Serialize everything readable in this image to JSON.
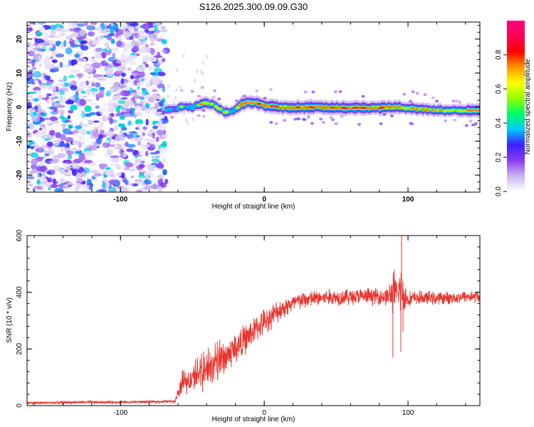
{
  "chart_data": [
    {
      "type": "heatmap",
      "title": "S126.2025.300.09.09.G30",
      "xlabel": "Height of straight line (km)",
      "ylabel": "Frequency (Hz)",
      "xlim": [
        -165,
        150
      ],
      "ylim": [
        -25,
        25
      ],
      "x_ticks": [
        -100,
        0,
        100
      ],
      "x_tick_labels": [
        "-100",
        "0",
        "100"
      ],
      "y_ticks": [
        -20,
        -10,
        0,
        10,
        20
      ],
      "y_tick_labels": [
        "-20",
        "-10",
        "0",
        "10",
        "20"
      ],
      "colorbar": {
        "label": "Normalized spectral amplitude",
        "range": [
          0,
          1
        ],
        "ticks": [
          0,
          0.2,
          0.4,
          0.6,
          0.8
        ],
        "tick_labels": [
          "0.0",
          "0.2",
          "0.4",
          "0.6",
          "0.8"
        ],
        "colors": [
          "#ffffff",
          "#c8b4f0",
          "#8a3cf0",
          "#3c1eff",
          "#00c8ff",
          "#00ff64",
          "#96ff00",
          "#ffff00",
          "#ff9600",
          "#ff0000",
          "#ff0050",
          "#ff0080"
        ]
      },
      "noise_region_x": [
        -165,
        -68
      ],
      "signal_start_x": -68,
      "signal_track": [
        {
          "x": -68,
          "y": -1.0,
          "a": 0.35
        },
        {
          "x": -62,
          "y": -0.5,
          "a": 0.45
        },
        {
          "x": -55,
          "y": 0.3,
          "a": 0.5
        },
        {
          "x": -50,
          "y": -0.2,
          "a": 0.55
        },
        {
          "x": -45,
          "y": 0.8,
          "a": 0.6
        },
        {
          "x": -40,
          "y": 1.2,
          "a": 0.7
        },
        {
          "x": -35,
          "y": 0.5,
          "a": 0.65
        },
        {
          "x": -30,
          "y": -0.8,
          "a": 0.6
        },
        {
          "x": -25,
          "y": -1.8,
          "a": 0.55
        },
        {
          "x": -20,
          "y": -0.6,
          "a": 0.6
        },
        {
          "x": -15,
          "y": 1.0,
          "a": 0.75
        },
        {
          "x": -10,
          "y": 1.5,
          "a": 0.8
        },
        {
          "x": -5,
          "y": 1.2,
          "a": 0.8
        },
        {
          "x": 0,
          "y": 0.5,
          "a": 0.75
        },
        {
          "x": 10,
          "y": 0.0,
          "a": 0.85
        },
        {
          "x": 20,
          "y": -0.1,
          "a": 0.9
        },
        {
          "x": 40,
          "y": -0.1,
          "a": 0.9
        },
        {
          "x": 60,
          "y": -0.2,
          "a": 0.9
        },
        {
          "x": 80,
          "y": -0.2,
          "a": 0.85
        },
        {
          "x": 90,
          "y": 0.0,
          "a": 0.75
        },
        {
          "x": 100,
          "y": -0.3,
          "a": 0.75
        },
        {
          "x": 110,
          "y": -0.6,
          "a": 0.7
        },
        {
          "x": 120,
          "y": -0.9,
          "a": 0.65
        },
        {
          "x": 135,
          "y": -1.0,
          "a": 0.7
        },
        {
          "x": 150,
          "y": -1.1,
          "a": 0.8
        }
      ]
    },
    {
      "type": "line",
      "title": "",
      "xlabel": "Height of straight line (km)",
      "ylabel": "SNR (10 * v/v)",
      "xlim": [
        -165,
        150
      ],
      "ylim": [
        0,
        600
      ],
      "x_ticks": [
        -100,
        0,
        100
      ],
      "x_tick_labels": [
        "-100",
        "0",
        "100"
      ],
      "y_ticks": [
        0,
        200,
        400,
        600
      ],
      "y_tick_labels": [
        "0",
        "200",
        "400",
        "600"
      ],
      "series_color": "#e8352e",
      "series": [
        {
          "name": "SNR",
          "x": [
            -165,
            -150,
            -130,
            -110,
            -90,
            -70,
            -62,
            -58,
            -55,
            -50,
            -45,
            -40,
            -35,
            -30,
            -25,
            -20,
            -15,
            -10,
            -5,
            0,
            5,
            10,
            15,
            20,
            25,
            30,
            35,
            40,
            45,
            50,
            55,
            60,
            65,
            70,
            75,
            80,
            85,
            88,
            90,
            92,
            95,
            97,
            100,
            105,
            110,
            115,
            120,
            125,
            130,
            135,
            140,
            145,
            150
          ],
          "y": [
            10,
            10,
            12,
            12,
            13,
            14,
            16,
            75,
            80,
            95,
            105,
            125,
            140,
            160,
            180,
            205,
            225,
            250,
            275,
            295,
            315,
            335,
            350,
            360,
            370,
            375,
            378,
            380,
            382,
            382,
            384,
            384,
            385,
            385,
            386,
            386,
            385,
            390,
            400,
            385,
            420,
            390,
            375,
            380,
            380,
            380,
            378,
            380,
            380,
            382,
            385,
            385,
            385
          ],
          "noise": [
            6,
            6,
            6,
            6,
            6,
            6,
            6,
            40,
            45,
            55,
            65,
            70,
            70,
            70,
            70,
            70,
            65,
            60,
            55,
            55,
            50,
            45,
            42,
            40,
            38,
            36,
            35,
            35,
            35,
            35,
            35,
            35,
            35,
            35,
            35,
            35,
            40,
            60,
            90,
            60,
            110,
            70,
            35,
            30,
            28,
            28,
            28,
            26,
            26,
            26,
            26,
            26,
            26
          ],
          "spikes": [
            {
              "x": 89.5,
              "y": 170
            },
            {
              "x": 90.5,
              "y": 480
            },
            {
              "x": 95.5,
              "y": 600
            },
            {
              "x": 95,
              "y": 190
            },
            {
              "x": 96.5,
              "y": 260
            }
          ]
        }
      ]
    }
  ]
}
